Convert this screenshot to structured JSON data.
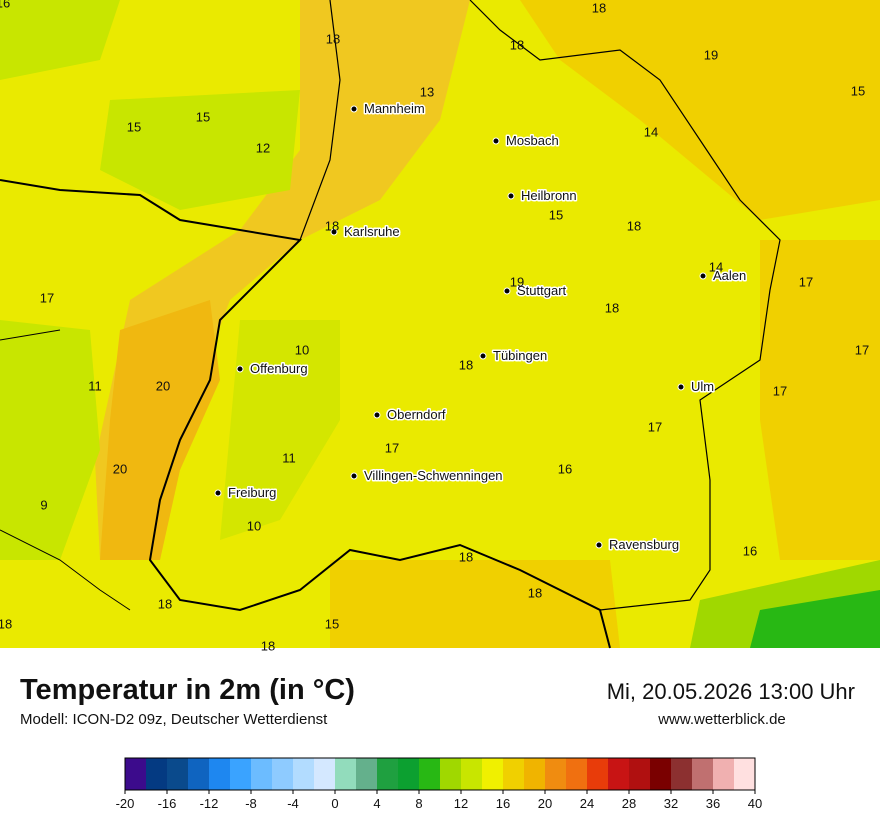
{
  "title": "Temperatur in 2m (in °C)",
  "model": "Modell: ICON-D2 09z, Deutscher Wetterdienst",
  "datetime": "Mi, 20.05.2026 13:00 Uhr",
  "website": "www.wetterblick.de",
  "cities": [
    "Mannheim",
    "Mosbach",
    "Heilbronn",
    "Karlsruhe",
    "Stuttgart",
    "Aalen",
    "Tübingen",
    "Offenburg",
    "Ulm",
    "Oberndorf",
    "Villingen-Schwenningen",
    "Freiburg",
    "Ravensburg"
  ],
  "temperatures": [
    16,
    18,
    18,
    18,
    19,
    15,
    13,
    15,
    15,
    14,
    12,
    15,
    18,
    18,
    14,
    19,
    17,
    17,
    18,
    17,
    10,
    18,
    11,
    20,
    17,
    17,
    17,
    11,
    20,
    16,
    9,
    10,
    18,
    16,
    18,
    18,
    18,
    15,
    18
  ],
  "legend": {
    "colors": [
      "#3c0b8c",
      "#043a82",
      "#0a4a8c",
      "#0f64c0",
      "#1e87f0",
      "#3aa3ff",
      "#6cbcff",
      "#8ecbff",
      "#b2dcff",
      "#d4e8ff",
      "#92dcbc",
      "#64b08c",
      "#1fa040",
      "#0ca030",
      "#28b814",
      "#a0d800",
      "#c8e600",
      "#f0f000",
      "#f0d000",
      "#f0b400",
      "#f08c10",
      "#f07010",
      "#e83c0a",
      "#c81414",
      "#b01010",
      "#7a0000",
      "#8c3030",
      "#c07070",
      "#f0b0b0",
      "#ffe0e0"
    ],
    "range": [
      -20,
      40
    ],
    "ticks": [
      -20,
      -16,
      -12,
      -8,
      -4,
      0,
      4,
      8,
      12,
      16,
      20,
      24,
      28,
      32,
      36,
      40
    ]
  }
}
